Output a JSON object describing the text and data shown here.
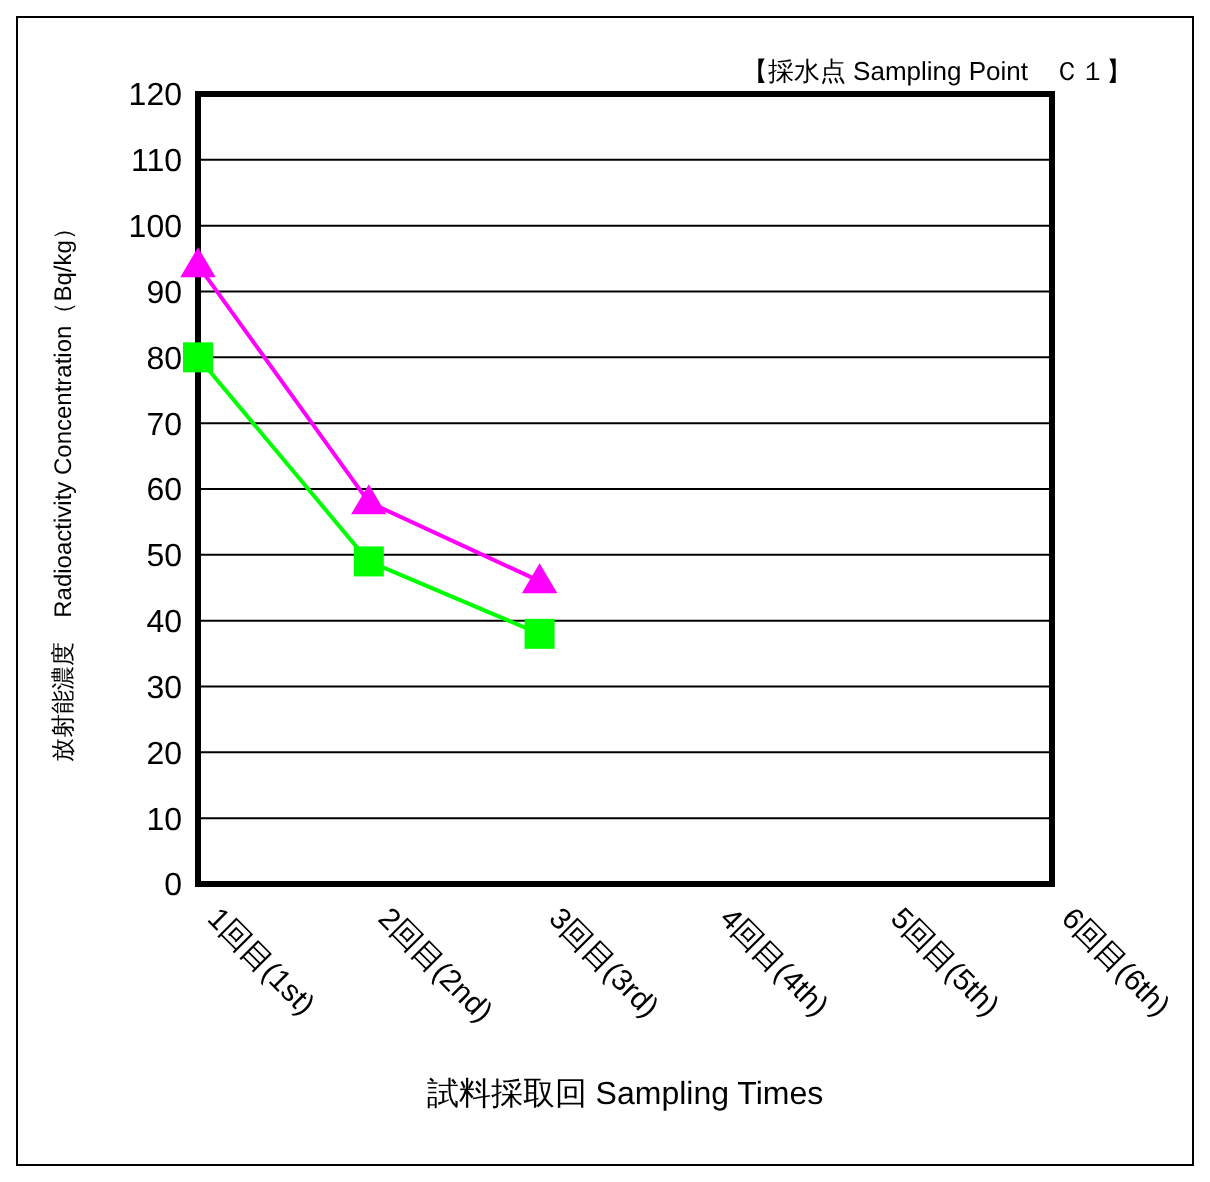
{
  "chart_data": {
    "type": "line",
    "title": "【採水点 Sampling Point　Ｃ１】",
    "xlabel": "試料採取回 Sampling Times",
    "ylabel": "放射能濃度　Radioactivity Concentration（Bq/kg）",
    "categories": [
      "1回目(1st)",
      "2回目(2nd)",
      "3回目(3rd)",
      "4回目(4th)",
      "5回目(5th)",
      "6回目(6th)"
    ],
    "series": [
      {
        "color": "#ff00ff",
        "marker": "triangle",
        "values": [
          94,
          58,
          46,
          null,
          null,
          null
        ]
      },
      {
        "color": "#00ff00",
        "marker": "square",
        "values": [
          80,
          49,
          38,
          null,
          null,
          null
        ]
      }
    ],
    "ylim": [
      0,
      120
    ],
    "yticks": [
      0,
      10,
      20,
      30,
      40,
      50,
      60,
      70,
      80,
      90,
      100,
      110,
      120
    ],
    "grid": "y",
    "legend": false
  }
}
